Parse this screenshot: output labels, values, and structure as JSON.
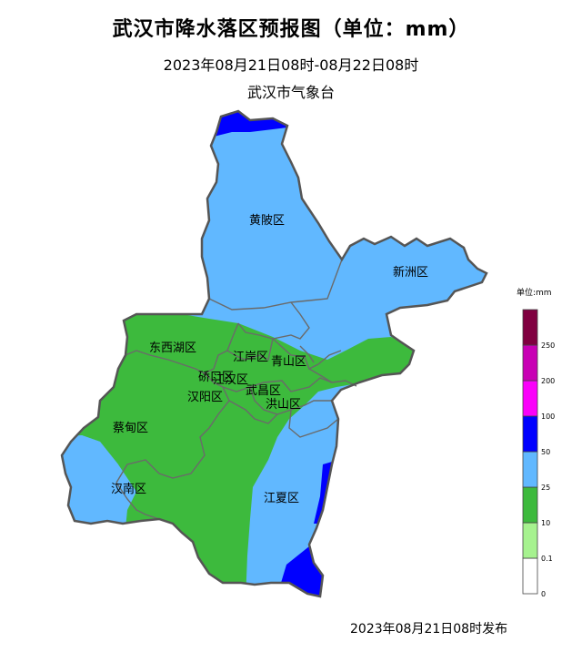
{
  "header": {
    "title": "武汉市降水落区预报图（单位：mm）",
    "time_range": "2023年08月21日08时-08月22日08时",
    "issuer": "武汉市气象台"
  },
  "footer": {
    "release": "2023年08月21日08时发布"
  },
  "legend": {
    "unit_label": "单位:mm",
    "bins": [
      {
        "from": "0",
        "to": "0.1",
        "color": "#ffffff"
      },
      {
        "from": "0.1",
        "to": "10",
        "color": "#a6f28f"
      },
      {
        "from": "10",
        "to": "25",
        "color": "#3dba3d"
      },
      {
        "from": "25",
        "to": "50",
        "color": "#61b8ff"
      },
      {
        "from": "50",
        "to": "100",
        "color": "#0000ff"
      },
      {
        "from": "100",
        "to": "200",
        "color": "#fa00fa"
      },
      {
        "from": "200",
        "to": "250",
        "color": "#c800b4"
      },
      {
        "from": "250",
        "to": "",
        "color": "#800040"
      }
    ],
    "ticks": [
      "0",
      "0.1",
      "10",
      "25",
      "50",
      "100",
      "200",
      "250"
    ]
  },
  "districts": [
    {
      "name": "黄陂区"
    },
    {
      "name": "新洲区"
    },
    {
      "name": "东西湖区"
    },
    {
      "name": "江岸区"
    },
    {
      "name": "青山区"
    },
    {
      "name": "硚口区"
    },
    {
      "name": "江汉区"
    },
    {
      "name": "汉阳区"
    },
    {
      "name": "武昌区"
    },
    {
      "name": "洪山区"
    },
    {
      "name": "蔡甸区"
    },
    {
      "name": "汉南区"
    },
    {
      "name": "江夏区"
    }
  ],
  "colors": {
    "green_10_25": "#3dba3d",
    "lightblue_25_50": "#61b8ff",
    "blue_50_100": "#0000ff",
    "boundary": "#555555"
  }
}
